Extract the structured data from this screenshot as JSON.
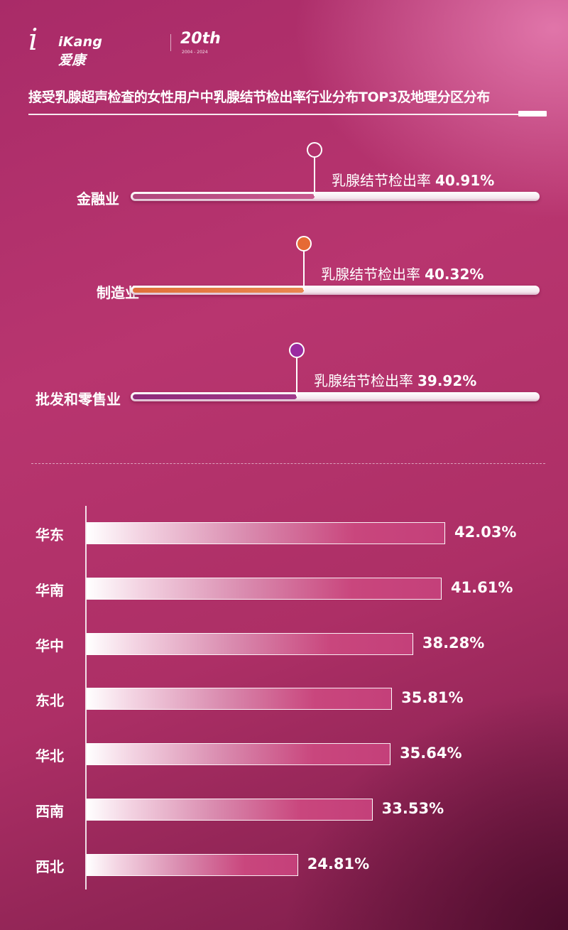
{
  "header": {
    "logo_i": "i",
    "brand": "iKang爱康",
    "anniversary": "20th",
    "years": "2004 - 2024"
  },
  "title": "接受乳腺超声检查的女性用户中乳腺结节检出率行业分布TOP3及地理分区分布",
  "colors": {
    "finance_marker": "#b83a78",
    "manufacturing_marker": "#e66a35",
    "wholesale_marker": "#9b2aa0",
    "region_bar": "#c9467d"
  },
  "chart_data": [
    {
      "type": "bar",
      "orientation": "horizontal",
      "categories": [
        "金融业",
        "制造业",
        "批发和零售业"
      ],
      "values": [
        40.91,
        40.32,
        39.92
      ],
      "value_prefix": "乳腺结节检出率",
      "value_labels": [
        "40.91%",
        "40.32%",
        "39.92%"
      ],
      "unit": "%"
    },
    {
      "type": "bar",
      "orientation": "horizontal",
      "categories": [
        "华东",
        "华南",
        "华中",
        "东北",
        "华北",
        "西南",
        "西北"
      ],
      "values": [
        42.03,
        41.61,
        38.28,
        35.81,
        35.64,
        33.53,
        24.81
      ],
      "value_labels": [
        "42.03%",
        "41.61%",
        "38.28%",
        "35.81%",
        "35.64%",
        "33.53%",
        "24.81%"
      ],
      "unit": "%"
    }
  ]
}
